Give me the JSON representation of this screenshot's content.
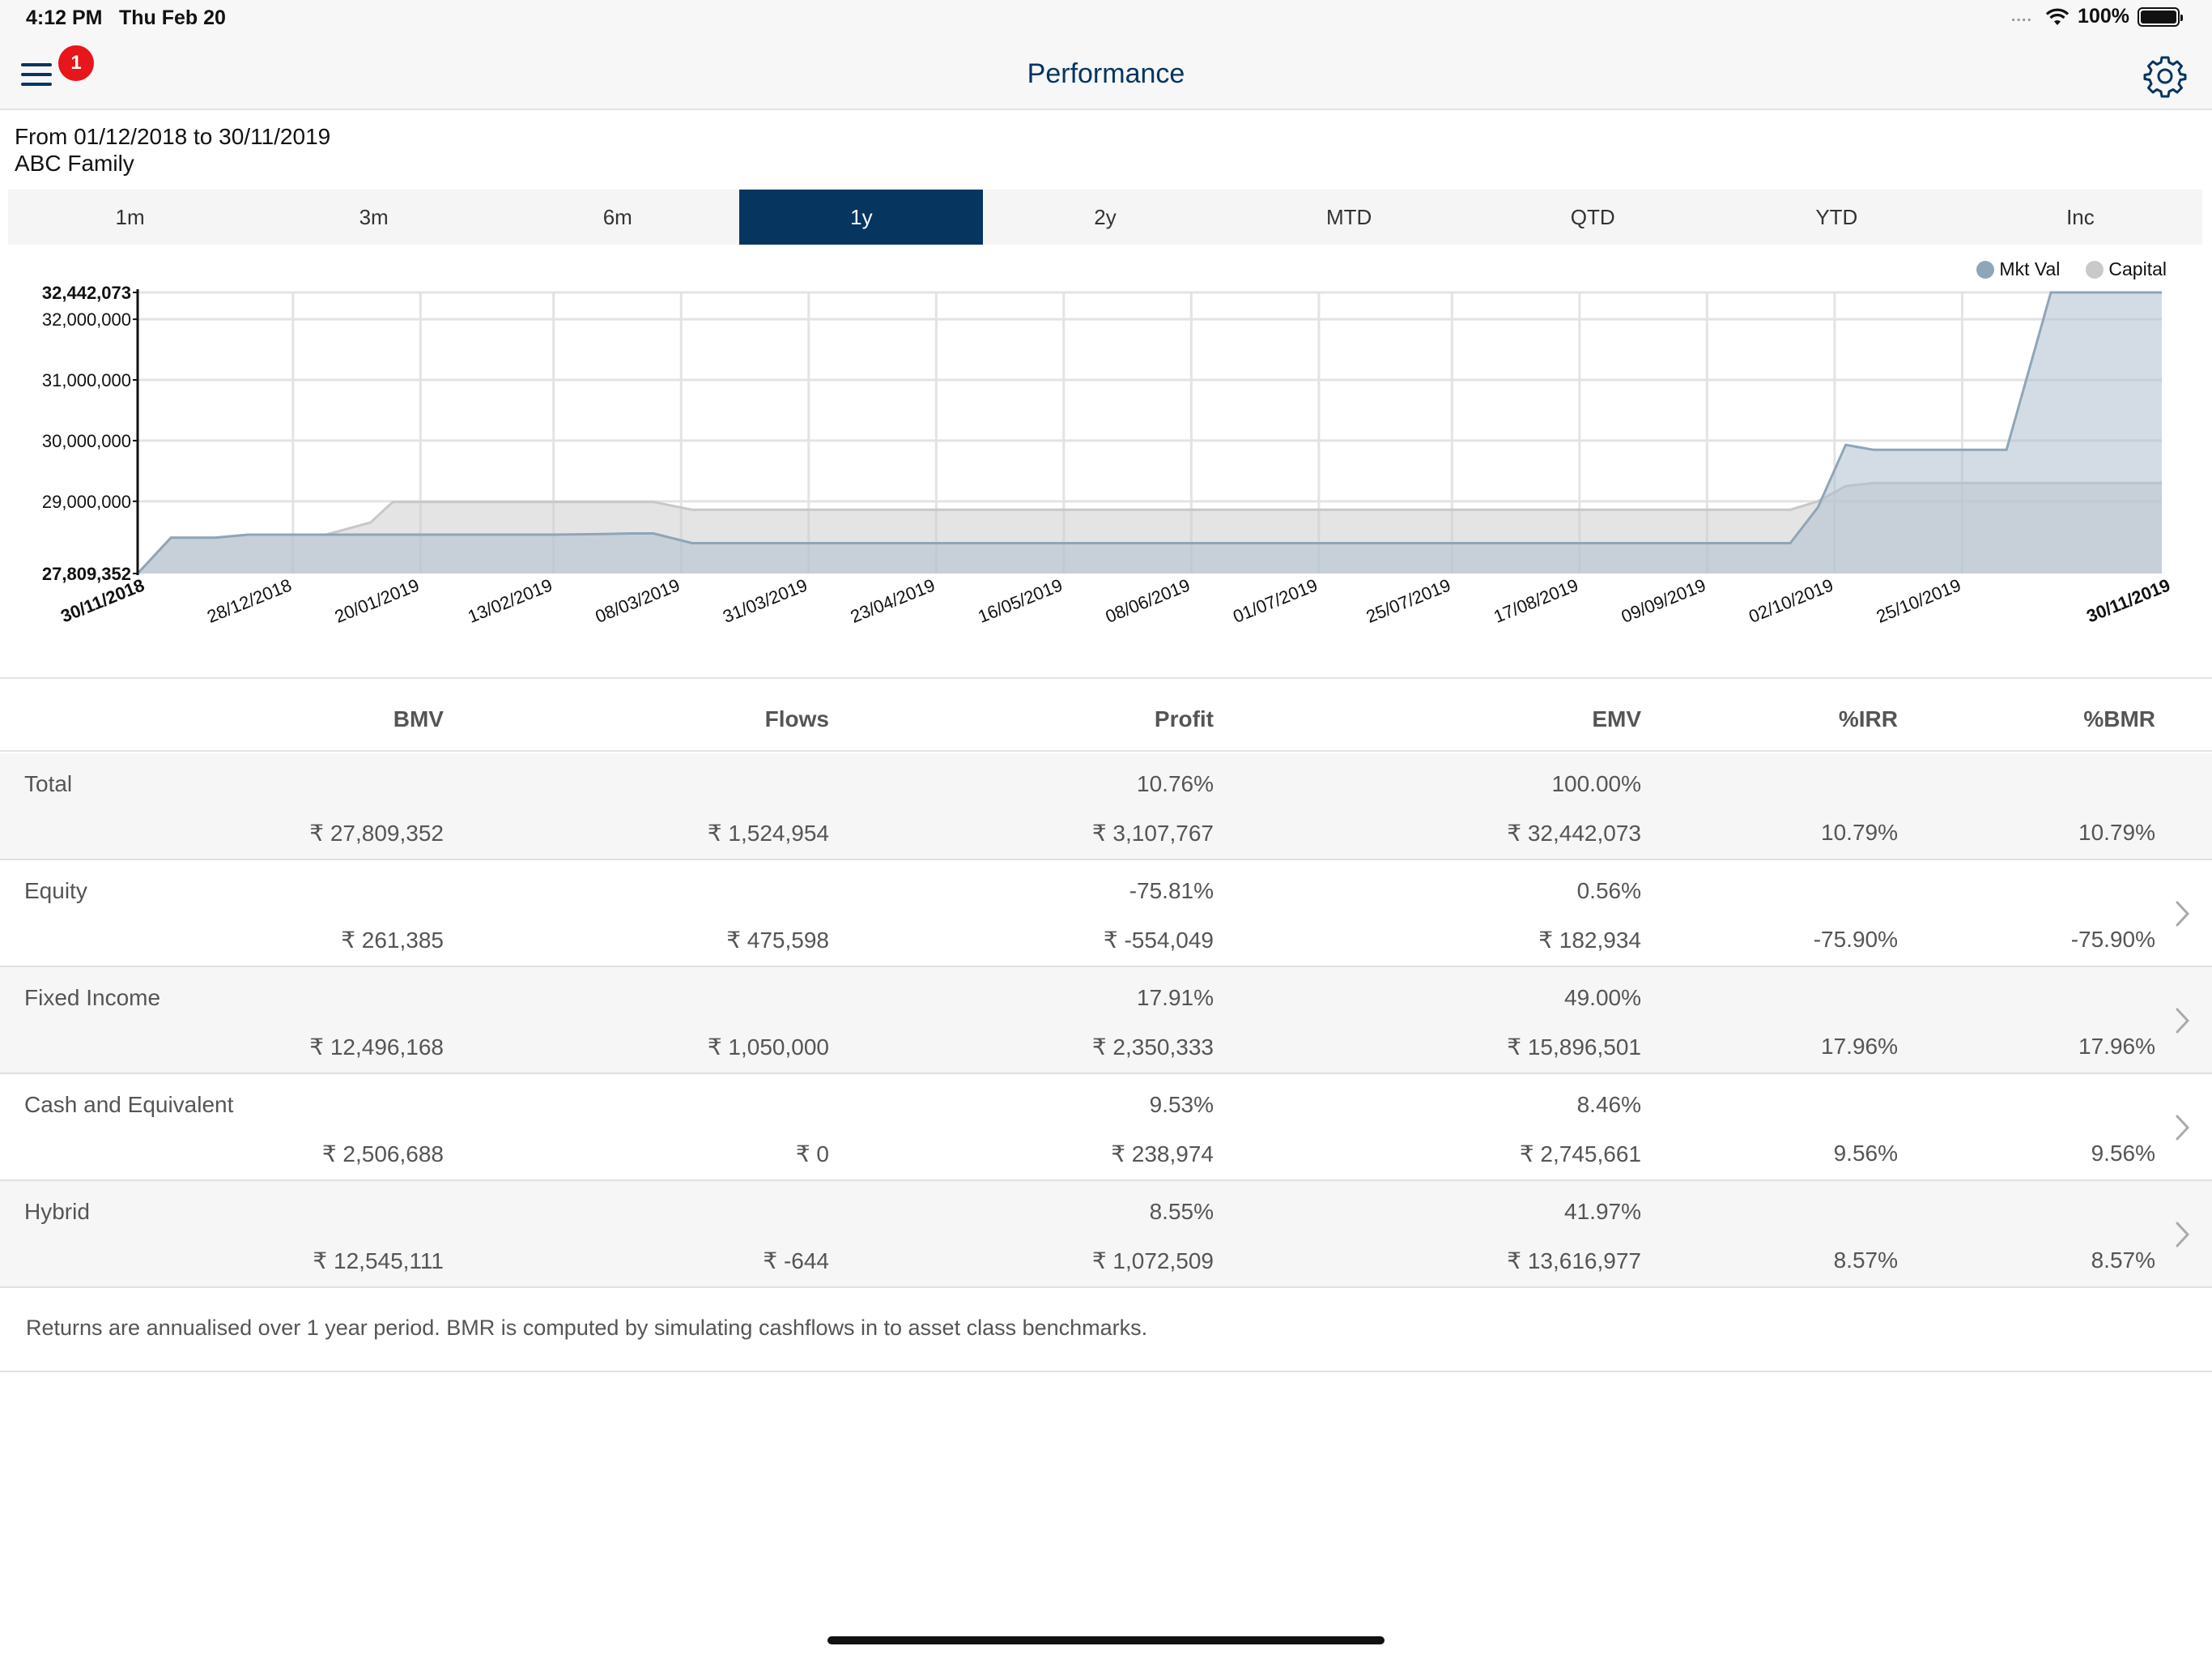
{
  "status_bar": {
    "time": "4:12 PM",
    "date": "Thu Feb 20",
    "signal": "....",
    "battery": "100%"
  },
  "nav": {
    "title": "Performance",
    "notification_count": "1",
    "menu_icon": "hamburger-menu-icon",
    "settings_icon": "gear-icon"
  },
  "info": {
    "period": "From 01/12/2018 to 30/11/2019",
    "account": "ABC Family"
  },
  "tabs": [
    {
      "label": "1m",
      "active": false
    },
    {
      "label": "3m",
      "active": false
    },
    {
      "label": "6m",
      "active": false
    },
    {
      "label": "1y",
      "active": true
    },
    {
      "label": "2y",
      "active": false
    },
    {
      "label": "MTD",
      "active": false
    },
    {
      "label": "QTD",
      "active": false
    },
    {
      "label": "YTD",
      "active": false
    },
    {
      "label": "Inc",
      "active": false
    }
  ],
  "chart_data": {
    "type": "area",
    "legend_position": "top-right",
    "grid": true,
    "ylim": [
      27809352,
      32442073
    ],
    "y_ticks": [
      "27,809,352",
      "29,000,000",
      "30,000,000",
      "31,000,000",
      "32,000,000",
      "32,442,073"
    ],
    "y_tick_values": [
      27809352,
      29000000,
      30000000,
      31000000,
      32000000,
      32442073
    ],
    "x_tick_labels": [
      "30/11/2018",
      "28/12/2018",
      "20/01/2019",
      "13/02/2019",
      "08/03/2019",
      "31/03/2019",
      "23/04/2019",
      "16/05/2019",
      "08/06/2019",
      "01/07/2019",
      "25/07/2019",
      "17/08/2019",
      "09/09/2019",
      "02/10/2019",
      "25/10/2019",
      "30/11/2019"
    ],
    "x_tick_days": [
      0,
      28,
      51,
      75,
      98,
      121,
      144,
      167,
      190,
      213,
      237,
      260,
      283,
      306,
      329,
      365
    ],
    "series": [
      {
        "name": "Mkt Val",
        "color": "#8fa5b8",
        "points": [
          [
            0,
            27809352
          ],
          [
            6,
            28400000
          ],
          [
            14,
            28400000
          ],
          [
            20,
            28450000
          ],
          [
            34,
            28450000
          ],
          [
            55,
            28450000
          ],
          [
            64,
            28450000
          ],
          [
            75,
            28450000
          ],
          [
            84,
            28460000
          ],
          [
            89,
            28470000
          ],
          [
            93,
            28470000
          ],
          [
            100,
            28310000
          ],
          [
            110,
            28310000
          ],
          [
            200,
            28310000
          ],
          [
            283,
            28310000
          ],
          [
            291,
            28310000
          ],
          [
            298,
            28310000
          ],
          [
            303,
            28900000
          ],
          [
            308,
            29930000
          ],
          [
            313,
            29850000
          ],
          [
            320,
            29850000
          ],
          [
            329,
            29850000
          ],
          [
            337,
            29850000
          ],
          [
            345,
            32442073
          ],
          [
            365,
            32442073
          ]
        ]
      },
      {
        "name": "Capital",
        "color": "#c9c9c9",
        "points": [
          [
            0,
            27809352
          ],
          [
            6,
            28400000
          ],
          [
            14,
            28400000
          ],
          [
            20,
            28450000
          ],
          [
            34,
            28450000
          ],
          [
            42,
            28650000
          ],
          [
            46,
            28990000
          ],
          [
            55,
            28990000
          ],
          [
            75,
            28990000
          ],
          [
            93,
            28990000
          ],
          [
            100,
            28860000
          ],
          [
            110,
            28860000
          ],
          [
            200,
            28860000
          ],
          [
            283,
            28860000
          ],
          [
            298,
            28860000
          ],
          [
            303,
            29000000
          ],
          [
            308,
            29250000
          ],
          [
            313,
            29300000
          ],
          [
            329,
            29300000
          ],
          [
            337,
            29300000
          ],
          [
            345,
            29300000
          ],
          [
            365,
            29300000
          ]
        ]
      }
    ]
  },
  "table": {
    "columns": [
      "BMV",
      "Flows",
      "Profit",
      "EMV",
      "%IRR",
      "%BMR"
    ],
    "rows": [
      {
        "name": "Total",
        "profit_pct": "10.76%",
        "emv_pct": "100.00%",
        "bmv": "₹ 27,809,352",
        "flows": "₹ 1,524,954",
        "profit": "₹ 3,107,767",
        "emv": "₹ 32,442,073",
        "irr": "10.79%",
        "bmr": "10.79%",
        "chevron": false
      },
      {
        "name": "Equity",
        "profit_pct": "-75.81%",
        "emv_pct": "0.56%",
        "bmv": "₹ 261,385",
        "flows": "₹ 475,598",
        "profit": "₹ -554,049",
        "emv": "₹ 182,934",
        "irr": "-75.90%",
        "bmr": "-75.90%",
        "chevron": true
      },
      {
        "name": "Fixed Income",
        "profit_pct": "17.91%",
        "emv_pct": "49.00%",
        "bmv": "₹ 12,496,168",
        "flows": "₹ 1,050,000",
        "profit": "₹ 2,350,333",
        "emv": "₹ 15,896,501",
        "irr": "17.96%",
        "bmr": "17.96%",
        "chevron": true
      },
      {
        "name": "Cash and Equivalent",
        "profit_pct": "9.53%",
        "emv_pct": "8.46%",
        "bmv": "₹ 2,506,688",
        "flows": "₹ 0",
        "profit": "₹ 238,974",
        "emv": "₹ 2,745,661",
        "irr": "9.56%",
        "bmr": "9.56%",
        "chevron": true
      },
      {
        "name": "Hybrid",
        "profit_pct": "8.55%",
        "emv_pct": "41.97%",
        "bmv": "₹ 12,545,111",
        "flows": "₹ -644",
        "profit": "₹ 1,072,509",
        "emv": "₹ 13,616,977",
        "irr": "8.57%",
        "bmr": "8.57%",
        "chevron": true
      }
    ]
  },
  "footnote": "Returns are annualised over 1 year period. BMR is computed by simulating cashflows in to asset class benchmarks."
}
